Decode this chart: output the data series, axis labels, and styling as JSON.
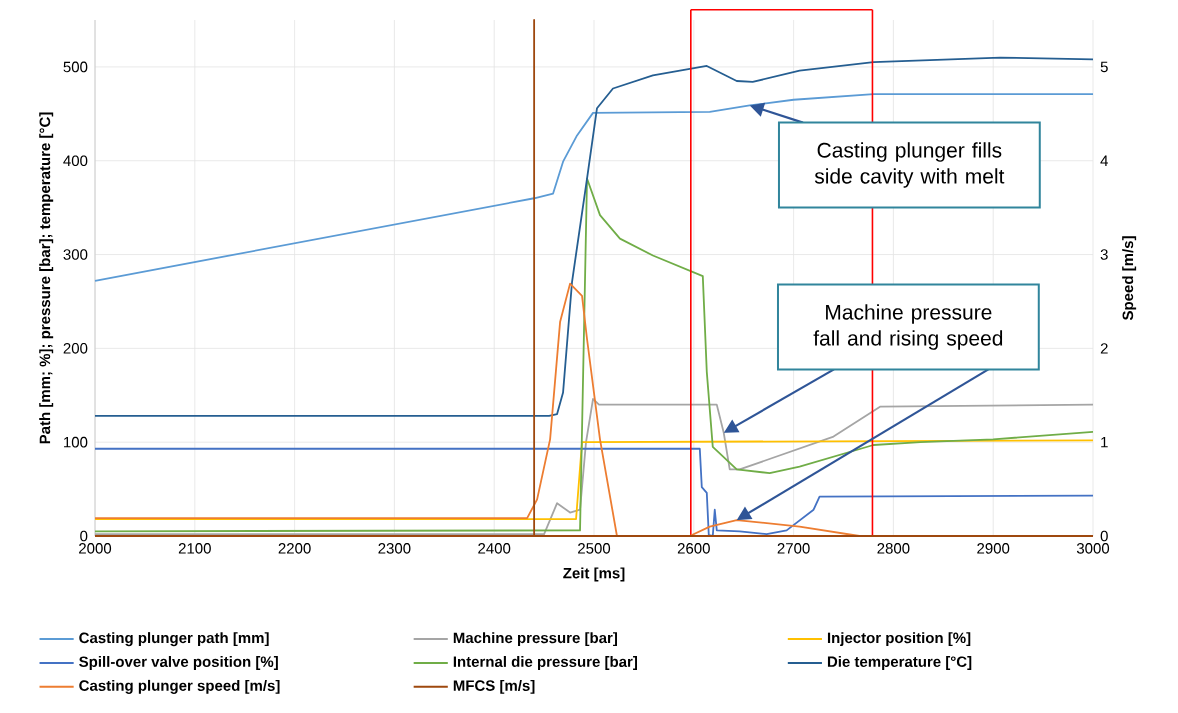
{
  "chart_data": {
    "type": "line",
    "xlabel": "Zeit [ms]",
    "ylabel": "Path [mm; %]; pressure [bar]; temperature [°C]",
    "y2label": "Speed [m/s]",
    "xlim": [
      2000,
      3000
    ],
    "xticks": [
      2000,
      2100,
      2200,
      2300,
      2400,
      2500,
      2600,
      2700,
      2800,
      2900,
      3000
    ],
    "ylim": [
      0,
      550
    ],
    "yticks": [
      0,
      100,
      200,
      300,
      400,
      500
    ],
    "y2lim": [
      0,
      5.5
    ],
    "y2ticks": [
      0,
      1,
      2,
      3,
      4,
      5
    ],
    "grid": true,
    "legend": "bottom",
    "marker": "none",
    "line_style": "solid",
    "series": [
      {
        "name": "Casting plunger path [mm]",
        "color": "#5b9bd5",
        "x": [
          2000,
          2440,
          2459,
          2469,
          2483,
          2499,
          2616,
          2656,
          2700,
          2780,
          3000
        ],
        "values": [
          272,
          360,
          365,
          399,
          427,
          451,
          452,
          459,
          465,
          471,
          471
        ]
      },
      {
        "name": "Machine pressure [bar]",
        "color": "#a5a5a5",
        "x": [
          2000,
          2450,
          2463,
          2476,
          2486,
          2492,
          2499,
          2505,
          2623,
          2630,
          2636,
          2646,
          2673,
          2740,
          2787,
          3000
        ],
        "values": [
          2,
          2,
          35,
          25,
          28,
          100,
          146,
          140,
          140,
          110,
          71,
          71,
          81,
          106,
          138,
          140
        ]
      },
      {
        "name": "Injector position [%]",
        "color": "#ffc000",
        "x": [
          2000,
          2482,
          2488,
          2492,
          3000
        ],
        "values": [
          18,
          18,
          100,
          100,
          102
        ]
      },
      {
        "name": "Spill-over valve position [%]",
        "color": "#4472c4",
        "x": [
          2000,
          2606,
          2608,
          2613,
          2615,
          2619,
          2621,
          2623,
          2646,
          2673,
          2693,
          2720,
          2726,
          3000
        ],
        "values": [
          93,
          93,
          52,
          46,
          1,
          0,
          28,
          6,
          5,
          2,
          6,
          28,
          42,
          43
        ]
      },
      {
        "name": "Internal die pressure [bar]",
        "color": "#70ad47",
        "x": [
          2000,
          2486,
          2493,
          2506,
          2526,
          2559,
          2609,
          2613,
          2619,
          2643,
          2676,
          2706,
          2780,
          2827,
          2900,
          3000
        ],
        "values": [
          5,
          6,
          381,
          342,
          317,
          299,
          277,
          175,
          95,
          71,
          67,
          74,
          97,
          100,
          103,
          111
        ]
      },
      {
        "name": "Die temperature [°C]",
        "color": "#255e91",
        "x": [
          2000,
          2455,
          2463,
          2469,
          2478,
          2493,
          2503,
          2519,
          2559,
          2613,
          2643,
          2659,
          2706,
          2780,
          2907,
          3000
        ],
        "values": [
          128,
          128,
          130,
          153,
          271,
          381,
          456,
          477,
          491,
          501,
          485,
          484,
          496,
          505,
          510,
          508
        ]
      },
      {
        "name": "Casting plunger speed [m/s]",
        "color": "#ed7d31",
        "axis": "y2",
        "x": [
          2000,
          2433,
          2443,
          2456,
          2466,
          2476,
          2488,
          2493,
          2506,
          2523,
          2596,
          2616,
          2643,
          2706,
          2766,
          3000
        ],
        "values": [
          0.19,
          0.19,
          0.39,
          1.03,
          2.28,
          2.69,
          2.56,
          2.1,
          1.03,
          0,
          0,
          0.1,
          0.17,
          0.1,
          0,
          0
        ]
      },
      {
        "name": "MFCS [m/s]",
        "color": "#9e480e",
        "axis": "y2",
        "x": [
          2000,
          2440,
          2440,
          2440,
          3000
        ],
        "values": [
          0,
          0,
          5.5,
          0,
          0
        ]
      }
    ],
    "ref_lines": [
      {
        "axis": "x",
        "value": 2597,
        "color": "#ff0000"
      },
      {
        "axis": "x",
        "value": 2779,
        "color": "#ff0000"
      }
    ],
    "annotations": [
      "Casting plunger fills side cavity with melt",
      "Machine pressure fall and rising speed"
    ]
  }
}
